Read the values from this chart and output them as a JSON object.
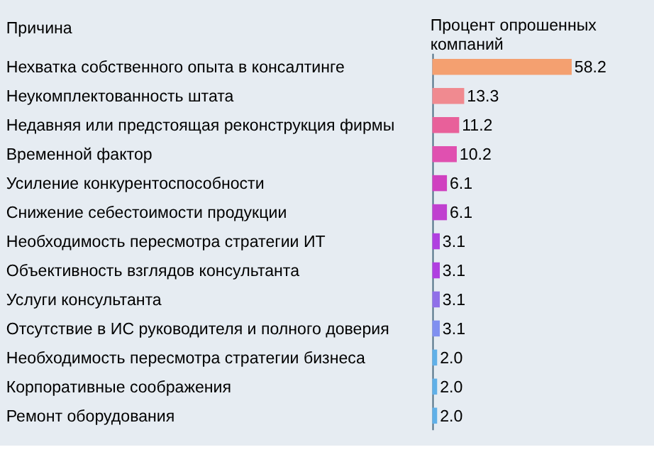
{
  "chart_data": {
    "type": "bar",
    "orientation": "horizontal",
    "ylabel": "Причина",
    "xlabel": "Процент опрошенных компаний",
    "categories": [
      "Нехватка собственного опыта в консалтинге",
      "Неукомплектованность штата",
      "Недавняя или предстоящая реконструкция фирмы",
      "Временной фактор",
      "Усиление конкурентоспособности",
      "Снижение себестоимости продукции",
      "Необходимость пересмотра стратегии ИТ",
      "Объективность взглядов консультанта",
      "Услуги консультанта",
      "Отсутствие в ИС руководителя и полного доверия",
      "Необходимость пересмотра стратегии бизнеса",
      "Корпоративные соображения",
      "Ремонт оборудования"
    ],
    "values": [
      58.2,
      13.3,
      11.2,
      10.2,
      6.1,
      6.1,
      3.1,
      3.1,
      3.1,
      3.1,
      2.0,
      2.0,
      2.0
    ],
    "value_labels": [
      "58.2",
      "13.3",
      "11.2",
      "10.2",
      "6.1",
      "6.1",
      "3.1",
      "3.1",
      "3.1",
      "3.1",
      "2.0",
      "2.0",
      "2.0"
    ],
    "colors": [
      "#f4a070",
      "#f08a90",
      "#e8609a",
      "#e050b0",
      "#d040c0",
      "#c040d0",
      "#b040e0",
      "#b040e0",
      "#9070e8",
      "#8090f0",
      "#60b0e8",
      "#60b0e8",
      "#60b0e8"
    ],
    "xlim": [
      0,
      60
    ],
    "tick_labels": "y",
    "grid": false
  }
}
